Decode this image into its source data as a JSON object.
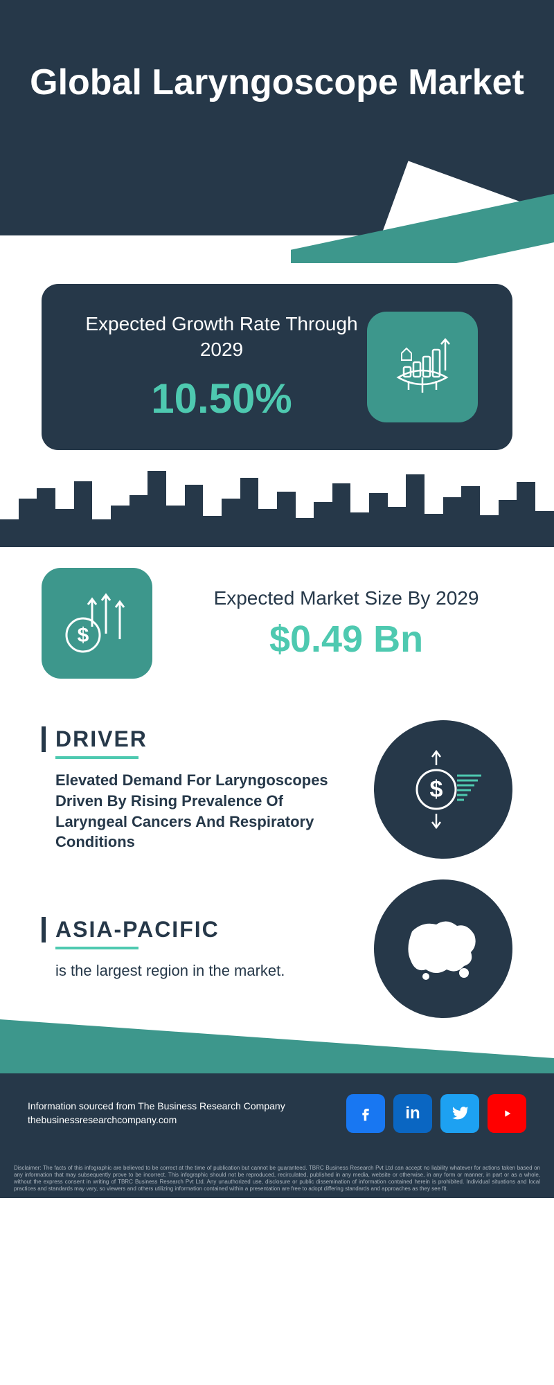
{
  "title": "Global Laryngoscope Market",
  "growth": {
    "label": "Expected Growth Rate Through 2029",
    "value": "10.50%"
  },
  "marketSize": {
    "label": "Expected Market Size By 2029",
    "value": "$0.49 Bn"
  },
  "driver": {
    "heading": "DRIVER",
    "body": "Elevated Demand For Laryngoscopes Driven By Rising Prevalence Of Laryngeal Cancers And Respiratory Conditions"
  },
  "region": {
    "heading": "ASIA-PACIFIC",
    "body": "is the largest region in the market."
  },
  "source": {
    "line1": "Information sourced from The Business Research Company",
    "line2": "thebusinessresearchcompany.com"
  },
  "disclaimer": "Disclaimer: The facts of this infographic are believed to be correct at the time of publication but cannot be guaranteed. TBRC Business Research Pvt Ltd can accept no liability whatever for actions taken based on any information that may subsequently prove to be incorrect. This infographic should not be reproduced, recirculated, published in any media, website or otherwise, in any form or manner, in part or as a whole, without the express consent in writing of TBRC Business Research Pvt Ltd. Any unauthorized use, disclosure or public dissemination of information contained herein is prohibited. Individual situations and local practices and standards may vary, so viewers and others utilizing information contained within a presentation are free to adopt differing standards and approaches as they see fit.",
  "colors": {
    "dark": "#263849",
    "teal": "#3d978c",
    "accent": "#4ec9b0"
  },
  "skyline": [
    40,
    70,
    85,
    55,
    95,
    40,
    60,
    75,
    110,
    60,
    90,
    45,
    70,
    100,
    55,
    80,
    42,
    65,
    92,
    50,
    78,
    58,
    105,
    48,
    72,
    88,
    46,
    68,
    94,
    52
  ],
  "social_labels": {
    "fb": "f",
    "li": "in",
    "tw": "t",
    "yt": "yt"
  }
}
